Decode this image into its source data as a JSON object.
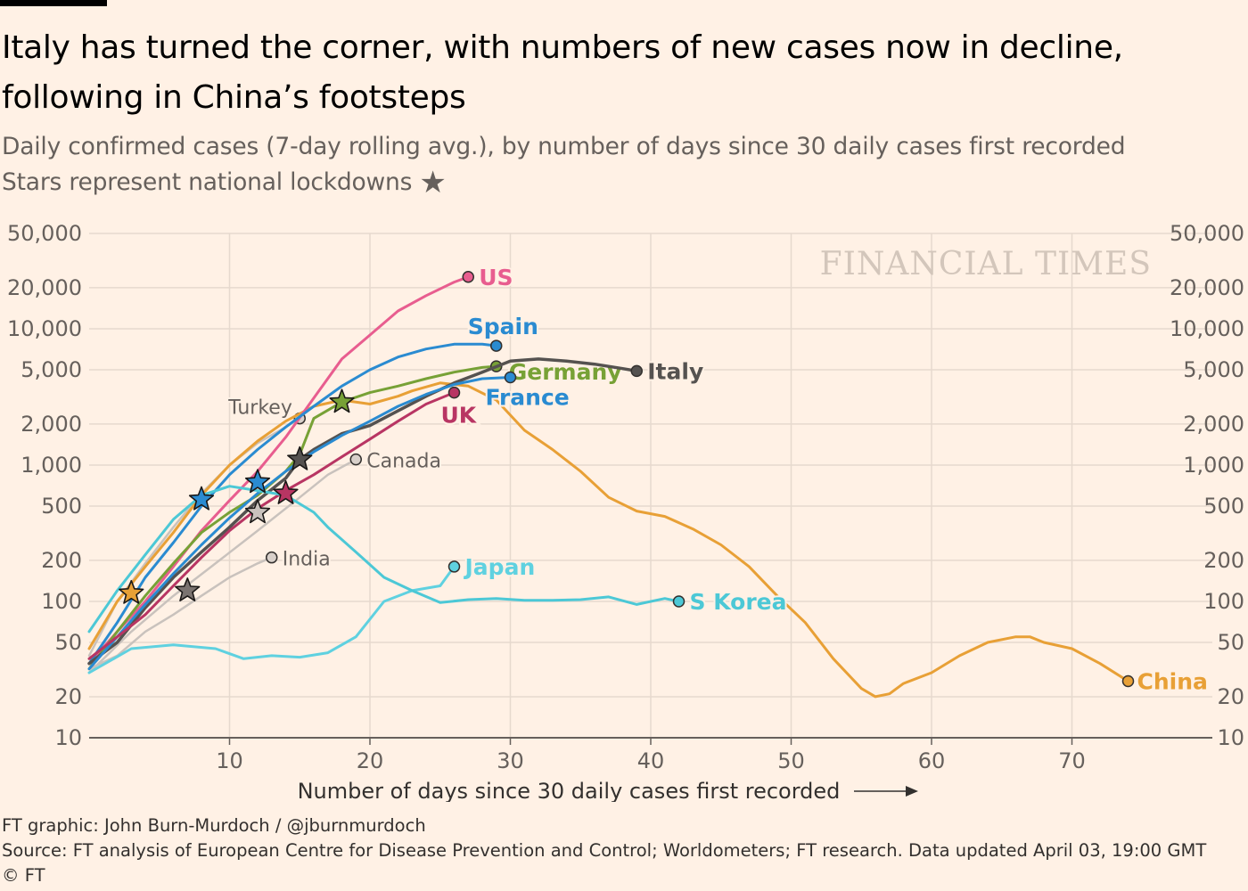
{
  "title": "Italy has turned the corner, with numbers of new cases now in decline, following in China’s footsteps",
  "subtitle_lines": [
    "Daily confirmed cases (7-day rolling avg.), by number of days since 30 daily cases first recorded",
    "Stars represent national lockdowns"
  ],
  "watermark": "FINANCIAL TIMES",
  "footer": {
    "credit": "FT graphic: John Burn-Murdoch / @jburnmurdoch",
    "source": "Source: FT analysis of European Centre for Disease Prevention and Control; Worldometers; FT research. Data updated April 03, 19:00 GMT",
    "copyright": "© FT"
  },
  "colors": {
    "background": "#fff1e5",
    "us": "#e85d8f",
    "spain": "#2a8bd1",
    "germany": "#77a136",
    "italy": "#555250",
    "france": "#2a8bd1",
    "uk": "#b83563",
    "china": "#e8a036",
    "japan": "#5fd1e0",
    "skorea": "#4cc8d6",
    "other": "#c9c2bd",
    "star": "#6b6562"
  },
  "chart_data": {
    "type": "line",
    "yscale": "log",
    "xlim": [
      0,
      80
    ],
    "ylim": [
      10,
      50000
    ],
    "xlabel": "Number of days since 30 daily cases first recorded",
    "xticks": [
      10,
      20,
      30,
      40,
      50,
      60,
      70
    ],
    "yticks": [
      10,
      20,
      50,
      100,
      200,
      500,
      1000,
      2000,
      5000,
      10000,
      20000,
      50000
    ],
    "ytick_labels": [
      "10",
      "20",
      "50",
      "100",
      "200",
      "500",
      "1,000",
      "2,000",
      "5,000",
      "10,000",
      "20,000",
      "50,000"
    ],
    "series": [
      {
        "name": "China",
        "color": "#e8a036",
        "width": 3,
        "label_dx": 10,
        "label_dy": 0,
        "bold": true,
        "x": [
          0,
          2,
          4,
          6,
          8,
          10,
          12,
          14,
          16,
          18,
          20,
          22,
          23,
          25,
          27,
          29,
          31,
          33,
          35,
          37,
          39,
          41,
          43,
          45,
          47,
          49,
          51,
          53,
          55,
          56,
          57,
          58,
          60,
          62,
          64,
          66,
          67,
          68,
          70,
          72,
          74
        ],
        "y": [
          45,
          100,
          180,
          320,
          600,
          1000,
          1500,
          2100,
          2700,
          3000,
          2800,
          3200,
          3500,
          4000,
          3800,
          3000,
          1800,
          1300,
          900,
          580,
          460,
          420,
          340,
          260,
          180,
          110,
          70,
          38,
          23,
          20,
          21,
          25,
          30,
          40,
          50,
          55,
          55,
          50,
          45,
          35,
          26
        ]
      },
      {
        "name": "US",
        "color": "#e85d8f",
        "width": 3,
        "label_dx": 12,
        "label_dy": 0,
        "bold": true,
        "x": [
          0,
          2,
          4,
          6,
          8,
          10,
          12,
          14,
          16,
          18,
          20,
          22,
          24,
          26,
          27
        ],
        "y": [
          35,
          60,
          100,
          180,
          330,
          550,
          900,
          1600,
          3100,
          6000,
          9000,
          13500,
          17500,
          22000,
          24000
        ]
      },
      {
        "name": "Spain",
        "color": "#2a8bd1",
        "width": 3,
        "label_dx": -32,
        "label_dy": -22,
        "bold": true,
        "x": [
          0,
          2,
          4,
          6,
          8,
          10,
          12,
          14,
          16,
          18,
          20,
          22,
          24,
          26,
          28,
          29
        ],
        "y": [
          35,
          70,
          150,
          270,
          500,
          850,
          1300,
          1900,
          2700,
          3800,
          5000,
          6200,
          7100,
          7700,
          7700,
          7500
        ]
      },
      {
        "name": "Germany",
        "color": "#77a136",
        "width": 3,
        "label_dx": 14,
        "label_dy": 6,
        "bold": true,
        "x": [
          0,
          2,
          4,
          6,
          8,
          10,
          12,
          14,
          15,
          16,
          18,
          20,
          22,
          24,
          26,
          28,
          29
        ],
        "y": [
          32,
          60,
          110,
          190,
          320,
          450,
          600,
          900,
          1200,
          2200,
          2900,
          3400,
          3800,
          4300,
          4800,
          5200,
          5300
        ]
      },
      {
        "name": "Italy",
        "color": "#555250",
        "width": 3.5,
        "label_dx": 12,
        "label_dy": 0,
        "bold": true,
        "x": [
          0,
          2,
          4,
          6,
          8,
          10,
          12,
          14,
          15,
          16,
          18,
          20,
          22,
          24,
          26,
          28,
          30,
          32,
          34,
          36,
          38,
          39
        ],
        "y": [
          35,
          50,
          90,
          150,
          230,
          350,
          550,
          800,
          1100,
          1300,
          1700,
          1950,
          2500,
          3200,
          4000,
          4800,
          5800,
          6000,
          5800,
          5500,
          5100,
          4900
        ]
      },
      {
        "name": "France",
        "color": "#2a8bd1",
        "width": 3,
        "label_dx": -28,
        "label_dy": 22,
        "bold": true,
        "x": [
          0,
          2,
          4,
          6,
          8,
          10,
          12,
          14,
          16,
          18,
          20,
          22,
          24,
          26,
          28,
          30
        ],
        "y": [
          32,
          55,
          95,
          160,
          260,
          410,
          620,
          900,
          1250,
          1650,
          2100,
          2700,
          3300,
          3900,
          4300,
          4400
        ]
      },
      {
        "name": "UK",
        "color": "#b83563",
        "width": 3,
        "label_dx": -15,
        "label_dy": 25,
        "bold": true,
        "x": [
          0,
          2,
          4,
          6,
          8,
          10,
          12,
          14,
          16,
          18,
          20,
          22,
          24,
          26
        ],
        "y": [
          38,
          55,
          80,
          130,
          210,
          330,
          480,
          650,
          850,
          1150,
          1550,
          2100,
          2800,
          3400
        ]
      },
      {
        "name": "Japan",
        "color": "#5fd1e0",
        "width": 3,
        "label_dx": 12,
        "label_dy": 0,
        "bold": true,
        "x": [
          0,
          3,
          6,
          9,
          11,
          13,
          15,
          17,
          19,
          21,
          23,
          25,
          26
        ],
        "y": [
          30,
          45,
          48,
          45,
          38,
          40,
          39,
          42,
          55,
          100,
          120,
          130,
          180
        ]
      },
      {
        "name": "S Korea",
        "color": "#4cc8d6",
        "width": 3,
        "label_dx": 12,
        "label_dy": 0,
        "bold": true,
        "x": [
          0,
          2,
          4,
          6,
          8,
          10,
          12,
          14,
          16,
          17,
          19,
          21,
          23,
          25,
          27,
          29,
          31,
          33,
          35,
          37,
          39,
          41,
          42
        ],
        "y": [
          60,
          120,
          220,
          400,
          600,
          700,
          650,
          600,
          450,
          350,
          230,
          150,
          120,
          98,
          103,
          105,
          102,
          102,
          103,
          108,
          95,
          105,
          100
        ]
      },
      {
        "name": "Turkey",
        "color": "#c9c2bd",
        "width": 2.5,
        "label_dx": -80,
        "label_dy": -14,
        "bold": false,
        "x": [
          0,
          2,
          4,
          6,
          8,
          10,
          12,
          14,
          15
        ],
        "y": [
          40,
          100,
          190,
          350,
          620,
          1000,
          1450,
          1900,
          2200
        ]
      },
      {
        "name": "Canada",
        "color": "#c9c2bd",
        "width": 2.5,
        "label_dx": 12,
        "label_dy": 0,
        "bold": false,
        "x": [
          0,
          3,
          6,
          9,
          12,
          15,
          17,
          19
        ],
        "y": [
          30,
          60,
          110,
          190,
          330,
          580,
          850,
          1100
        ]
      },
      {
        "name": "India",
        "color": "#c9c2bd",
        "width": 2.5,
        "label_dx": 12,
        "label_dy": 0,
        "bold": false,
        "x": [
          0,
          2,
          4,
          6,
          8,
          10,
          12,
          13
        ],
        "y": [
          32,
          40,
          60,
          80,
          110,
          150,
          190,
          210
        ]
      }
    ],
    "lockdowns": [
      {
        "color": "#e8a036",
        "x": 3,
        "y": 115
      },
      {
        "color": "#7a7370",
        "x": 7,
        "y": 120
      },
      {
        "color": "#2a8bd1",
        "x": 8,
        "y": 560
      },
      {
        "color": "#2a8bd1",
        "x": 12,
        "y": 750
      },
      {
        "color": "#b83563",
        "x": 14,
        "y": 620
      },
      {
        "color": "#c9c2bd",
        "x": 12,
        "y": 450
      },
      {
        "color": "#555250",
        "x": 15,
        "y": 1100
      },
      {
        "color": "#77a136",
        "x": 18,
        "y": 2900
      }
    ]
  }
}
